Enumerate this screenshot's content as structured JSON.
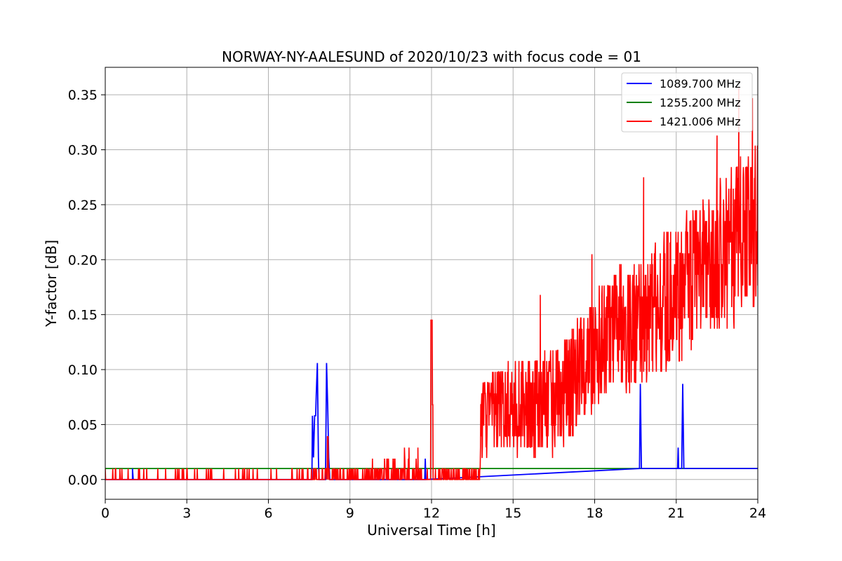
{
  "chart_data": {
    "type": "line",
    "title": "NORWAY-NY-AALESUND of 2020/10/23 with focus code = 01",
    "xlabel": "Universal Time [h]",
    "ylabel": "Y-factor [dB]",
    "xlim": [
      0,
      24
    ],
    "ylim": [
      -0.018,
      0.375
    ],
    "xticks": [
      0,
      3,
      6,
      9,
      12,
      15,
      18,
      21,
      24
    ],
    "xtick_labels": [
      "0",
      "3",
      "6",
      "9",
      "12",
      "15",
      "18",
      "21",
      "24"
    ],
    "yticks": [
      0.0,
      0.05,
      0.1,
      0.15,
      0.2,
      0.25,
      0.3,
      0.35
    ],
    "ytick_labels": [
      "0.00",
      "0.05",
      "0.10",
      "0.15",
      "0.20",
      "0.25",
      "0.30",
      "0.35"
    ],
    "grid": true,
    "legend_position": "top-right",
    "series": [
      {
        "name": "1089.700 MHz",
        "color": "#0000ff",
        "points": [
          [
            0,
            0.0
          ],
          [
            1.0,
            0.0
          ],
          [
            1.0,
            0.01
          ],
          [
            1.03,
            0.0
          ],
          [
            7.6,
            0.0
          ],
          [
            7.62,
            0.058
          ],
          [
            7.66,
            0.02
          ],
          [
            7.7,
            0.058
          ],
          [
            7.74,
            0.058
          ],
          [
            7.76,
            0.077
          ],
          [
            7.8,
            0.106
          ],
          [
            7.84,
            0.02
          ],
          [
            7.86,
            0.0
          ],
          [
            8.1,
            0.0
          ],
          [
            8.14,
            0.106
          ],
          [
            8.18,
            0.068
          ],
          [
            8.22,
            0.02
          ],
          [
            8.26,
            0.0
          ],
          [
            11.75,
            0.0
          ],
          [
            11.77,
            0.019
          ],
          [
            11.79,
            0.0
          ],
          [
            19.65,
            0.01
          ],
          [
            19.68,
            0.087
          ],
          [
            19.72,
            0.01
          ],
          [
            19.75,
            0.01
          ],
          [
            21.05,
            0.01
          ],
          [
            21.07,
            0.029
          ],
          [
            21.09,
            0.01
          ],
          [
            21.2,
            0.01
          ],
          [
            21.24,
            0.087
          ],
          [
            21.28,
            0.01
          ],
          [
            24,
            0.01
          ]
        ]
      },
      {
        "name": "1255.200 MHz",
        "color": "#008000",
        "points": [
          [
            0,
            0.01
          ],
          [
            24,
            0.01
          ]
        ]
      },
      {
        "name": "1421.006 MHz",
        "color": "#ff0000",
        "trend": [
          [
            0,
            0.0
          ],
          [
            7.0,
            0.003
          ],
          [
            9.0,
            0.005
          ],
          [
            11.9,
            0.006
          ],
          [
            12.0,
            0.07
          ],
          [
            12.3,
            0.005
          ],
          [
            13.7,
            0.005
          ],
          [
            13.9,
            0.06
          ],
          [
            15.0,
            0.065
          ],
          [
            16.5,
            0.07
          ],
          [
            17.5,
            0.1
          ],
          [
            18.5,
            0.13
          ],
          [
            20.0,
            0.15
          ],
          [
            21.0,
            0.17
          ],
          [
            22.0,
            0.19
          ],
          [
            23.0,
            0.21
          ],
          [
            24.0,
            0.23
          ]
        ],
        "peaks": [
          [
            11.5,
            0.029
          ],
          [
            12.0,
            0.145
          ],
          [
            16.0,
            0.168
          ],
          [
            17.9,
            0.205
          ],
          [
            19.8,
            0.275
          ],
          [
            22.5,
            0.313
          ],
          [
            23.3,
            0.357
          ],
          [
            23.8,
            0.347
          ]
        ]
      }
    ]
  }
}
